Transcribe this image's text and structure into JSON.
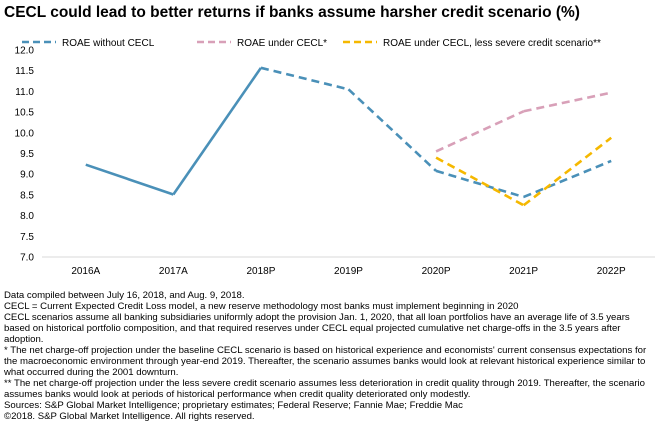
{
  "chart_data": {
    "type": "line",
    "title": "CECL could lead to better returns if banks assume harsher credit scenario (%)",
    "xlabel": "",
    "ylabel": "",
    "categories": [
      "2016A",
      "2017A",
      "2018P",
      "2019P",
      "2020P",
      "2021P",
      "2022P"
    ],
    "ylim": [
      7.0,
      12.0
    ],
    "yticks": [
      "7.0",
      "7.5",
      "8.0",
      "8.5",
      "9.0",
      "9.5",
      "10.0",
      "10.5",
      "11.0",
      "11.5",
      "12.0"
    ],
    "grid": false,
    "legend_position": "top",
    "series": [
      {
        "name": "ROAE without CECL",
        "color": "#4a90b8",
        "values": [
          9.23,
          8.51,
          11.57,
          11.05,
          9.08,
          8.45,
          9.32
        ],
        "style": [
          "solid",
          "solid",
          "dashed",
          "dashed",
          "dashed",
          "dashed"
        ]
      },
      {
        "name": "ROAE under CECL*",
        "color": "#d8a0b8",
        "values": [
          null,
          null,
          null,
          null,
          9.55,
          10.52,
          10.97
        ],
        "style": [
          "dashed",
          "dashed",
          "dashed",
          "dashed",
          "dashed",
          "dashed"
        ]
      },
      {
        "name": "ROAE under CECL, less severe credit scenario**",
        "color": "#f5b800",
        "values": [
          null,
          null,
          null,
          null,
          9.4,
          8.25,
          9.88
        ],
        "style": [
          "dashed",
          "dashed",
          "dashed",
          "dashed",
          "dashed",
          "dashed"
        ]
      }
    ]
  },
  "notes": [
    "Data compiled between July 16, 2018, and Aug. 9, 2018.",
    "CECL = Current Expected Credit Loss model, a new reserve methodology most banks must implement beginning in 2020",
    "CECL scenarios assume all banking subsidiaries uniformly adopt the provision Jan. 1, 2020, that all loan portfolios have an average life of 3.5 years based on historical portfolio composition, and that required reserves under CECL equal projected cumulative net charge-offs in the 3.5 years after adoption.",
    "* The net charge-off projection under the baseline CECL scenario is based on historical experience and economists' current consensus expectations for the macroeconomic environment through year-end 2019. Thereafter, the scenario assumes banks would look at relevant historical experience similar to what occurred during the 2001 downturn.",
    "** The net charge-off projection under the less severe credit scenario assumes less deterioration in credit quality through 2019. Thereafter, the scenario assumes banks would look at periods of historical performance when credit quality deteriorated only modestly.",
    "Sources: S&P Global Market Intelligence; proprietary estimates; Federal Reserve; Fannie Mae; Freddie Mac",
    "©2018. S&P Global Market Intelligence. All rights reserved."
  ]
}
